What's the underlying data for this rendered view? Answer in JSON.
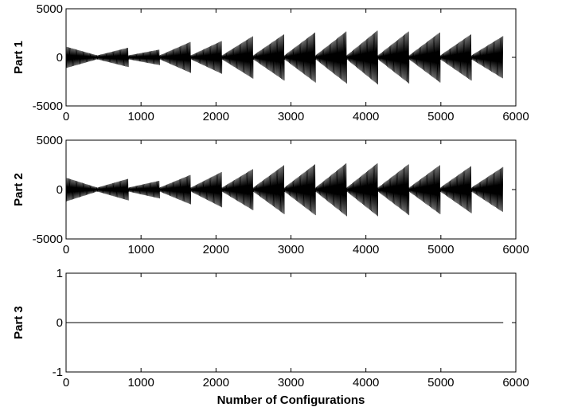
{
  "chart_data": [
    {
      "type": "line",
      "ylabel": "Part 1",
      "xlabel": "",
      "xlim": [
        0,
        6000
      ],
      "ylim": [
        -5000,
        5000
      ],
      "xticks": [
        0,
        1000,
        2000,
        3000,
        4000,
        5000,
        6000
      ],
      "xtick_labels": [
        "0",
        "1000",
        "2000",
        "3000",
        "4000",
        "5000",
        "6000"
      ],
      "yticks": [
        -5000,
        0,
        5000
      ],
      "ytick_labels": [
        "-5000",
        "0",
        "5000"
      ],
      "grid": false,
      "series": [
        {
          "color": "#000000",
          "x_range": [
            0,
            5832
          ],
          "pattern": "dense oscillation inside 14 repeating envelope blocks of about 416 configurations each; amplitude grows along each block",
          "block_envelopes": [
            {
              "x": [
                0,
                416
              ],
              "upper": [
                1100,
                200
              ],
              "lower": [
                -1100,
                -200
              ]
            },
            {
              "x": [
                416,
                832
              ],
              "upper": [
                200,
                1000
              ],
              "lower": [
                -200,
                -1000
              ]
            },
            {
              "x": [
                832,
                1248
              ],
              "upper": [
                200,
                800
              ],
              "lower": [
                -200,
                -800
              ]
            },
            {
              "x": [
                1248,
                1664
              ],
              "upper": [
                200,
                1600
              ],
              "lower": [
                -200,
                -1600
              ]
            },
            {
              "x": [
                1664,
                2080
              ],
              "upper": [
                200,
                1700
              ],
              "lower": [
                -200,
                -1700
              ]
            },
            {
              "x": [
                2080,
                2496
              ],
              "upper": [
                200,
                2200
              ],
              "lower": [
                -200,
                -2200
              ]
            },
            {
              "x": [
                2496,
                2912
              ],
              "upper": [
                200,
                2400
              ],
              "lower": [
                -200,
                -2400
              ]
            },
            {
              "x": [
                2912,
                3328
              ],
              "upper": [
                200,
                2600
              ],
              "lower": [
                -200,
                -2600
              ]
            },
            {
              "x": [
                3328,
                3744
              ],
              "upper": [
                200,
                2700
              ],
              "lower": [
                -200,
                -2700
              ]
            },
            {
              "x": [
                3744,
                4160
              ],
              "upper": [
                200,
                2800
              ],
              "lower": [
                -200,
                -2800
              ]
            },
            {
              "x": [
                4160,
                4576
              ],
              "upper": [
                200,
                2700
              ],
              "lower": [
                -200,
                -2700
              ]
            },
            {
              "x": [
                4576,
                4992
              ],
              "upper": [
                200,
                2600
              ],
              "lower": [
                -200,
                -2600
              ]
            },
            {
              "x": [
                4992,
                5408
              ],
              "upper": [
                200,
                2400
              ],
              "lower": [
                -200,
                -2400
              ]
            },
            {
              "x": [
                5408,
                5832
              ],
              "upper": [
                200,
                2200
              ],
              "lower": [
                -200,
                -2200
              ]
            }
          ]
        }
      ]
    },
    {
      "type": "line",
      "ylabel": "Part 2",
      "xlabel": "",
      "xlim": [
        0,
        6000
      ],
      "ylim": [
        -5000,
        5000
      ],
      "xticks": [
        0,
        1000,
        2000,
        3000,
        4000,
        5000,
        6000
      ],
      "xtick_labels": [
        "0",
        "1000",
        "2000",
        "3000",
        "4000",
        "5000",
        "6000"
      ],
      "yticks": [
        -5000,
        0,
        5000
      ],
      "ytick_labels": [
        "-5000",
        "0",
        "5000"
      ],
      "grid": false,
      "series": [
        {
          "color": "#000000",
          "x_range": [
            0,
            5832
          ],
          "pattern": "dense oscillation inside 14 repeating envelope blocks of about 416 configurations each; amplitude grows along each block",
          "block_envelopes": [
            {
              "x": [
                0,
                416
              ],
              "upper": [
                1200,
                200
              ],
              "lower": [
                -1200,
                -200
              ]
            },
            {
              "x": [
                416,
                832
              ],
              "upper": [
                200,
                1100
              ],
              "lower": [
                -200,
                -1100
              ]
            },
            {
              "x": [
                832,
                1248
              ],
              "upper": [
                200,
                900
              ],
              "lower": [
                -200,
                -900
              ]
            },
            {
              "x": [
                1248,
                1664
              ],
              "upper": [
                200,
                1500
              ],
              "lower": [
                -200,
                -1500
              ]
            },
            {
              "x": [
                1664,
                2080
              ],
              "upper": [
                200,
                1800
              ],
              "lower": [
                -200,
                -1800
              ]
            },
            {
              "x": [
                2080,
                2496
              ],
              "upper": [
                200,
                2100
              ],
              "lower": [
                -200,
                -2100
              ]
            },
            {
              "x": [
                2496,
                2912
              ],
              "upper": [
                200,
                2500
              ],
              "lower": [
                -200,
                -2500
              ]
            },
            {
              "x": [
                2912,
                3328
              ],
              "upper": [
                200,
                2600
              ],
              "lower": [
                -200,
                -2600
              ]
            },
            {
              "x": [
                3328,
                3744
              ],
              "upper": [
                200,
                2700
              ],
              "lower": [
                -200,
                -2700
              ]
            },
            {
              "x": [
                3744,
                4160
              ],
              "upper": [
                200,
                2700
              ],
              "lower": [
                -200,
                -2700
              ]
            },
            {
              "x": [
                4160,
                4576
              ],
              "upper": [
                200,
                2600
              ],
              "lower": [
                -200,
                -2600
              ]
            },
            {
              "x": [
                4576,
                4992
              ],
              "upper": [
                200,
                2500
              ],
              "lower": [
                -200,
                -2500
              ]
            },
            {
              "x": [
                4992,
                5408
              ],
              "upper": [
                200,
                2400
              ],
              "lower": [
                -200,
                -2400
              ]
            },
            {
              "x": [
                5408,
                5832
              ],
              "upper": [
                200,
                2300
              ],
              "lower": [
                -200,
                -2300
              ]
            }
          ]
        }
      ]
    },
    {
      "type": "line",
      "ylabel": "Part 3",
      "xlabel": "Number of Configurations",
      "xlim": [
        0,
        6000
      ],
      "ylim": [
        -1,
        1
      ],
      "xticks": [
        0,
        1000,
        2000,
        3000,
        4000,
        5000,
        6000
      ],
      "xtick_labels": [
        "0",
        "1000",
        "2000",
        "3000",
        "4000",
        "5000",
        "6000"
      ],
      "yticks": [
        -1,
        0,
        1
      ],
      "ytick_labels": [
        "-1",
        "0",
        "1"
      ],
      "grid": false,
      "series": [
        {
          "color": "#000000",
          "x": [
            0,
            5832
          ],
          "y": [
            0,
            0
          ]
        }
      ]
    }
  ]
}
